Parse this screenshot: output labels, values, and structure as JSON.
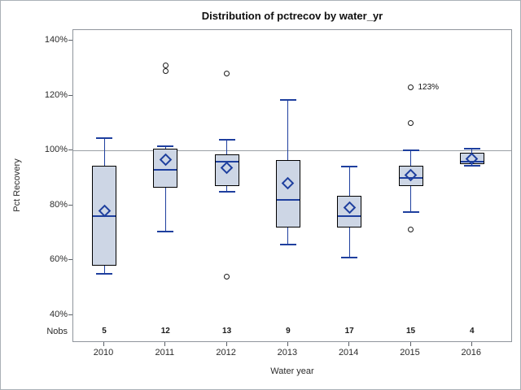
{
  "title": "Distribution of pctrecov by water_yr",
  "colors": {
    "box_fill": "#cdd6e5",
    "box_border": "#000000",
    "line_blue": "#1e3f9e",
    "outlier_outline": "#1a1a1a",
    "gridline_gray": "#9aa0a6",
    "frame_border": "#8f959c"
  },
  "chart_data": {
    "type": "boxplot",
    "title": "Distribution of pctrecov by water_yr",
    "xlabel": "Water year",
    "ylabel": "Pct Recovery",
    "nobs_header": "Nobs",
    "legend": "none",
    "grid": "reference line at 100% only",
    "reference_line_value": 100,
    "ylim": [
      30,
      143.5
    ],
    "y_ticks": [
      {
        "value": 140,
        "label": "140%"
      },
      {
        "value": 120,
        "label": "120%"
      },
      {
        "value": 100,
        "label": "100%"
      },
      {
        "value": 80,
        "label": "80%"
      },
      {
        "value": 60,
        "label": "60%"
      },
      {
        "value": 40,
        "label": "40%"
      }
    ],
    "categories": [
      "2010",
      "2011",
      "2012",
      "2013",
      "2014",
      "2015",
      "2016"
    ],
    "groups": [
      {
        "year": "2010",
        "nobs": "5",
        "whisker_low": 55,
        "q1": 58,
        "median": 76,
        "q3": 94.5,
        "whisker_high": 104.5,
        "mean": 78,
        "outliers": [],
        "outlier_labels": []
      },
      {
        "year": "2011",
        "nobs": "12",
        "whisker_low": 70.5,
        "q1": 86.5,
        "median": 93,
        "q3": 100.5,
        "whisker_high": 101.5,
        "mean": 96.5,
        "outliers": [
          129,
          131
        ],
        "outlier_labels": []
      },
      {
        "year": "2012",
        "nobs": "13",
        "whisker_low": 85,
        "q1": 87,
        "median": 96,
        "q3": 98.5,
        "whisker_high": 104,
        "mean": 93.5,
        "outliers": [
          54,
          128
        ],
        "outlier_labels": []
      },
      {
        "year": "2013",
        "nobs": "9",
        "whisker_low": 65.5,
        "q1": 72,
        "median": 82,
        "q3": 96.5,
        "whisker_high": 118.5,
        "mean": 88,
        "outliers": [],
        "outlier_labels": []
      },
      {
        "year": "2014",
        "nobs": "17",
        "whisker_low": 61,
        "q1": 72,
        "median": 76,
        "q3": 83.5,
        "whisker_high": 94,
        "mean": 79,
        "outliers": [],
        "outlier_labels": []
      },
      {
        "year": "2015",
        "nobs": "15",
        "whisker_low": 77.5,
        "q1": 87,
        "median": 90,
        "q3": 94.5,
        "whisker_high": 100,
        "mean": 91,
        "outliers": [
          71,
          110,
          123
        ],
        "outlier_labels": [
          {
            "value": 123,
            "label": "123%"
          }
        ]
      },
      {
        "year": "2016",
        "nobs": "4",
        "whisker_low": 94.5,
        "q1": 95,
        "median": 96,
        "q3": 99,
        "whisker_high": 100.5,
        "mean": 97,
        "outliers": [],
        "outlier_labels": []
      }
    ]
  }
}
